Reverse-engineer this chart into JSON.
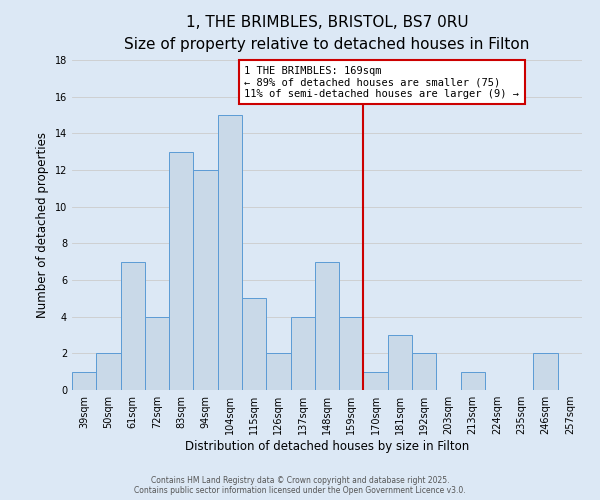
{
  "title": "1, THE BRIMBLES, BRISTOL, BS7 0RU",
  "subtitle": "Size of property relative to detached houses in Filton",
  "xlabel": "Distribution of detached houses by size in Filton",
  "ylabel": "Number of detached properties",
  "categories": [
    "39sqm",
    "50sqm",
    "61sqm",
    "72sqm",
    "83sqm",
    "94sqm",
    "104sqm",
    "115sqm",
    "126sqm",
    "137sqm",
    "148sqm",
    "159sqm",
    "170sqm",
    "181sqm",
    "192sqm",
    "203sqm",
    "213sqm",
    "224sqm",
    "235sqm",
    "246sqm",
    "257sqm"
  ],
  "values": [
    1,
    2,
    7,
    4,
    13,
    12,
    15,
    5,
    2,
    4,
    7,
    4,
    1,
    3,
    2,
    0,
    1,
    0,
    0,
    2,
    0
  ],
  "bar_color": "#c9d9e8",
  "bar_edge_color": "#5b9bd5",
  "marker_idx": 12,
  "marker_line_color": "#cc0000",
  "annotation_line1": "1 THE BRIMBLES: 169sqm",
  "annotation_line2": "← 89% of detached houses are smaller (75)",
  "annotation_line3": "11% of semi-detached houses are larger (9) →",
  "annotation_box_edgecolor": "#cc0000",
  "ylim": [
    0,
    18
  ],
  "yticks": [
    0,
    2,
    4,
    6,
    8,
    10,
    12,
    14,
    16,
    18
  ],
  "grid_color": "#cccccc",
  "background_color": "#dce8f5",
  "footer_line1": "Contains HM Land Registry data © Crown copyright and database right 2025.",
  "footer_line2": "Contains public sector information licensed under the Open Government Licence v3.0.",
  "title_fontsize": 11,
  "subtitle_fontsize": 9,
  "tick_fontsize": 7,
  "axis_label_fontsize": 8.5,
  "annotation_fontsize": 7.5
}
